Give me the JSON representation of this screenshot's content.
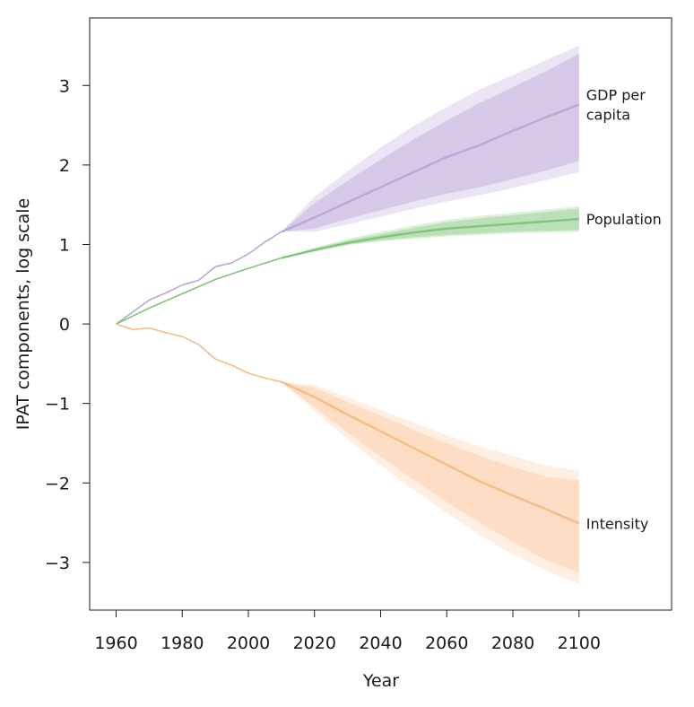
{
  "chart_data": {
    "type": "line",
    "xlabel": "Year",
    "ylabel": "IPAT components, log scale",
    "xlim": [
      1952,
      2128
    ],
    "ylim": [
      -3.6,
      3.85
    ],
    "xticks": [
      1960,
      1980,
      2000,
      2020,
      2040,
      2060,
      2080,
      2100
    ],
    "xtick_labels": [
      "1960",
      "1980",
      "2000",
      "2020",
      "2040",
      "2060",
      "2080",
      "2100"
    ],
    "yticks": [
      3,
      2,
      1,
      0,
      -1,
      -2,
      -3
    ],
    "ytick_labels": [
      "3",
      "2",
      "1",
      "0",
      "−1",
      "−2",
      "−3"
    ],
    "grid": false,
    "legend": "none",
    "series": [
      {
        "name": "GDP per capita",
        "label_lines": [
          "GDP per",
          "capita"
        ],
        "color": "#b9a8d8",
        "band_color": "#c2b3dd",
        "historical": {
          "x": [
            1960,
            1965,
            1970,
            1975,
            1980,
            1985,
            1990,
            1995,
            2000,
            2005,
            2010
          ],
          "y": [
            0,
            0.15,
            0.3,
            0.39,
            0.49,
            0.55,
            0.72,
            0.77,
            0.88,
            1.03,
            1.16
          ]
        },
        "projection": {
          "x": [
            2010,
            2020,
            2030,
            2040,
            2050,
            2060,
            2070,
            2080,
            2090,
            2100
          ],
          "y": [
            1.16,
            1.34,
            1.53,
            1.72,
            1.91,
            2.1,
            2.25,
            2.43,
            2.6,
            2.76
          ],
          "inner_low": [
            1.16,
            1.2,
            1.32,
            1.43,
            1.54,
            1.64,
            1.72,
            1.82,
            1.93,
            2.05
          ],
          "inner_high": [
            1.16,
            1.52,
            1.8,
            2.07,
            2.32,
            2.56,
            2.78,
            2.98,
            3.18,
            3.4
          ],
          "outer_low": [
            1.16,
            1.16,
            1.25,
            1.35,
            1.45,
            1.54,
            1.62,
            1.71,
            1.81,
            1.91
          ],
          "outer_high": [
            1.16,
            1.6,
            1.92,
            2.22,
            2.49,
            2.73,
            2.95,
            3.13,
            3.32,
            3.5
          ]
        }
      },
      {
        "name": "Population",
        "label_lines": [
          "Population"
        ],
        "color": "#82c47c",
        "band_color": "#9fd39a",
        "historical": {
          "x": [
            1960,
            1970,
            1980,
            1990,
            2000,
            2010
          ],
          "y": [
            0,
            0.2,
            0.38,
            0.56,
            0.7,
            0.83
          ]
        },
        "projection": {
          "x": [
            2010,
            2020,
            2030,
            2040,
            2050,
            2060,
            2070,
            2080,
            2090,
            2100
          ],
          "y": [
            0.83,
            0.93,
            1.02,
            1.09,
            1.15,
            1.2,
            1.23,
            1.26,
            1.29,
            1.32
          ],
          "inner_low": [
            0.83,
            0.92,
            1.0,
            1.05,
            1.09,
            1.12,
            1.14,
            1.16,
            1.17,
            1.18
          ],
          "inner_high": [
            0.83,
            0.95,
            1.05,
            1.13,
            1.21,
            1.28,
            1.33,
            1.37,
            1.41,
            1.45
          ],
          "outer_low": [
            0.83,
            0.91,
            0.99,
            1.04,
            1.07,
            1.1,
            1.12,
            1.14,
            1.15,
            1.16
          ],
          "outer_high": [
            0.83,
            0.96,
            1.07,
            1.16,
            1.24,
            1.31,
            1.36,
            1.4,
            1.44,
            1.48
          ]
        }
      },
      {
        "name": "Intensity",
        "label_lines": [
          "Intensity"
        ],
        "color": "#f5bd85",
        "band_color": "#fbd0ab",
        "historical": {
          "x": [
            1960,
            1965,
            1970,
            1975,
            1980,
            1985,
            1990,
            1995,
            2000,
            2005,
            2010
          ],
          "y": [
            0,
            -0.07,
            -0.05,
            -0.11,
            -0.16,
            -0.26,
            -0.44,
            -0.52,
            -0.62,
            -0.68,
            -0.73
          ]
        },
        "projection": {
          "x": [
            2010,
            2020,
            2030,
            2040,
            2050,
            2060,
            2070,
            2080,
            2090,
            2100
          ],
          "y": [
            -0.73,
            -0.92,
            -1.14,
            -1.35,
            -1.56,
            -1.77,
            -1.98,
            -2.16,
            -2.33,
            -2.51
          ],
          "inner_low": [
            -0.73,
            -1.05,
            -1.37,
            -1.67,
            -1.96,
            -2.24,
            -2.5,
            -2.74,
            -2.97,
            -3.13
          ],
          "inner_high": [
            -0.73,
            -0.8,
            -0.98,
            -1.15,
            -1.33,
            -1.5,
            -1.66,
            -1.8,
            -1.92,
            -1.97
          ],
          "outer_low": [
            -0.73,
            -1.1,
            -1.45,
            -1.78,
            -2.09,
            -2.38,
            -2.66,
            -2.9,
            -3.1,
            -3.27
          ],
          "outer_high": [
            -0.73,
            -0.77,
            -0.92,
            -1.08,
            -1.24,
            -1.4,
            -1.54,
            -1.66,
            -1.78,
            -1.85
          ]
        }
      }
    ]
  }
}
